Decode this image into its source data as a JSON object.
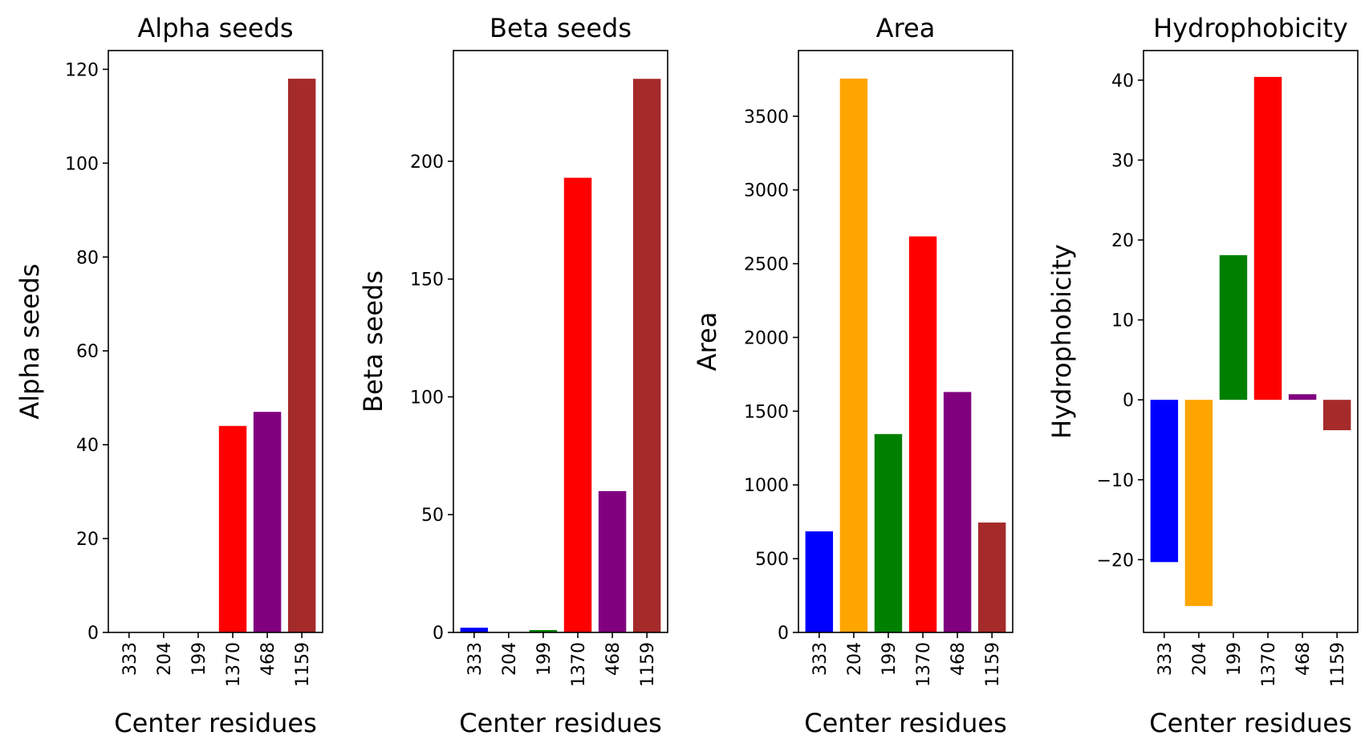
{
  "chart_data": [
    {
      "type": "bar",
      "title": "Alpha seeds",
      "xlabel": "Center residues",
      "ylabel": "Alpha seeds",
      "categories": [
        "333",
        "204",
        "199",
        "1370",
        "468",
        "1159"
      ],
      "values": [
        0,
        0,
        0,
        44,
        47,
        118
      ],
      "colors": [
        "#0000ff",
        "#ffa500",
        "#008000",
        "#ff0000",
        "#800080",
        "#a52a2a"
      ],
      "ylim": [
        0,
        124
      ],
      "yticks": [
        0,
        20,
        40,
        60,
        80,
        100,
        120
      ],
      "ytick_labels": [
        "0",
        "20",
        "40",
        "60",
        "80",
        "100",
        "120"
      ],
      "grid": false
    },
    {
      "type": "bar",
      "title": "Beta seeds",
      "xlabel": "Center residues",
      "ylabel": "Beta seeds",
      "categories": [
        "333",
        "204",
        "199",
        "1370",
        "468",
        "1159"
      ],
      "values": [
        2,
        0,
        1,
        193,
        60,
        235
      ],
      "colors": [
        "#0000ff",
        "#ffa500",
        "#008000",
        "#ff0000",
        "#800080",
        "#a52a2a"
      ],
      "ylim": [
        0,
        247
      ],
      "yticks": [
        0,
        50,
        100,
        150,
        200
      ],
      "ytick_labels": [
        "0",
        "50",
        "100",
        "150",
        "200"
      ],
      "grid": false
    },
    {
      "type": "bar",
      "title": "Area",
      "xlabel": "Center residues",
      "ylabel": "Area",
      "categories": [
        "333",
        "204",
        "199",
        "1370",
        "468",
        "1159"
      ],
      "values": [
        685,
        3755,
        1345,
        2685,
        1630,
        745
      ],
      "colors": [
        "#0000ff",
        "#ffa500",
        "#008000",
        "#ff0000",
        "#800080",
        "#a52a2a"
      ],
      "ylim": [
        0,
        3945
      ],
      "yticks": [
        0,
        500,
        1000,
        1500,
        2000,
        2500,
        3000,
        3500
      ],
      "ytick_labels": [
        "0",
        "500",
        "1000",
        "1500",
        "2000",
        "2500",
        "3000",
        "3500"
      ],
      "grid": false
    },
    {
      "type": "bar",
      "title": "Hydrophobicity",
      "xlabel": "Center residues",
      "ylabel": "Hydrophobicity",
      "categories": [
        "333",
        "204",
        "199",
        "1370",
        "468",
        "1159"
      ],
      "values": [
        -20.3,
        -25.8,
        18.1,
        40.4,
        0.7,
        -3.8
      ],
      "colors": [
        "#0000ff",
        "#ffa500",
        "#008000",
        "#ff0000",
        "#800080",
        "#a52a2a"
      ],
      "ylim": [
        -29.1,
        43.7
      ],
      "yticks": [
        -20,
        -10,
        0,
        10,
        20,
        30,
        40
      ],
      "ytick_labels": [
        "−20",
        "−10",
        "0",
        "10",
        "20",
        "30",
        "40"
      ],
      "grid": false
    }
  ]
}
